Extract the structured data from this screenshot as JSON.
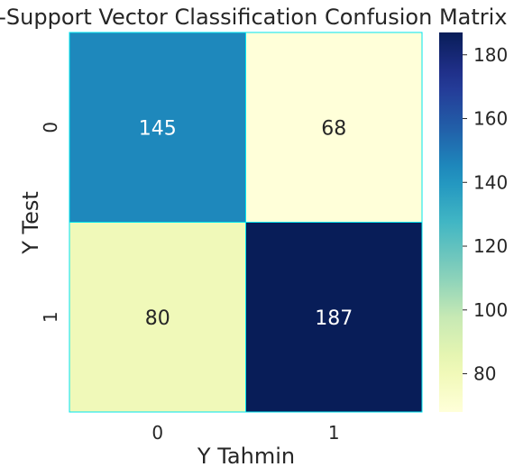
{
  "chart_data": {
    "type": "heatmap",
    "title": "C-Support Vector Classification Confusion Matrix",
    "xlabel": "Y Tahmin",
    "ylabel": "Y Test",
    "x_categories": [
      "0",
      "1"
    ],
    "y_categories": [
      "0",
      "1"
    ],
    "values": [
      [
        145,
        68
      ],
      [
        80,
        187
      ]
    ],
    "colormap": "YlGnBu",
    "cell_border_color": "#00e5ee",
    "colorbar": {
      "min": 68,
      "max": 187,
      "ticks": [
        80,
        100,
        120,
        140,
        160,
        180
      ]
    }
  }
}
